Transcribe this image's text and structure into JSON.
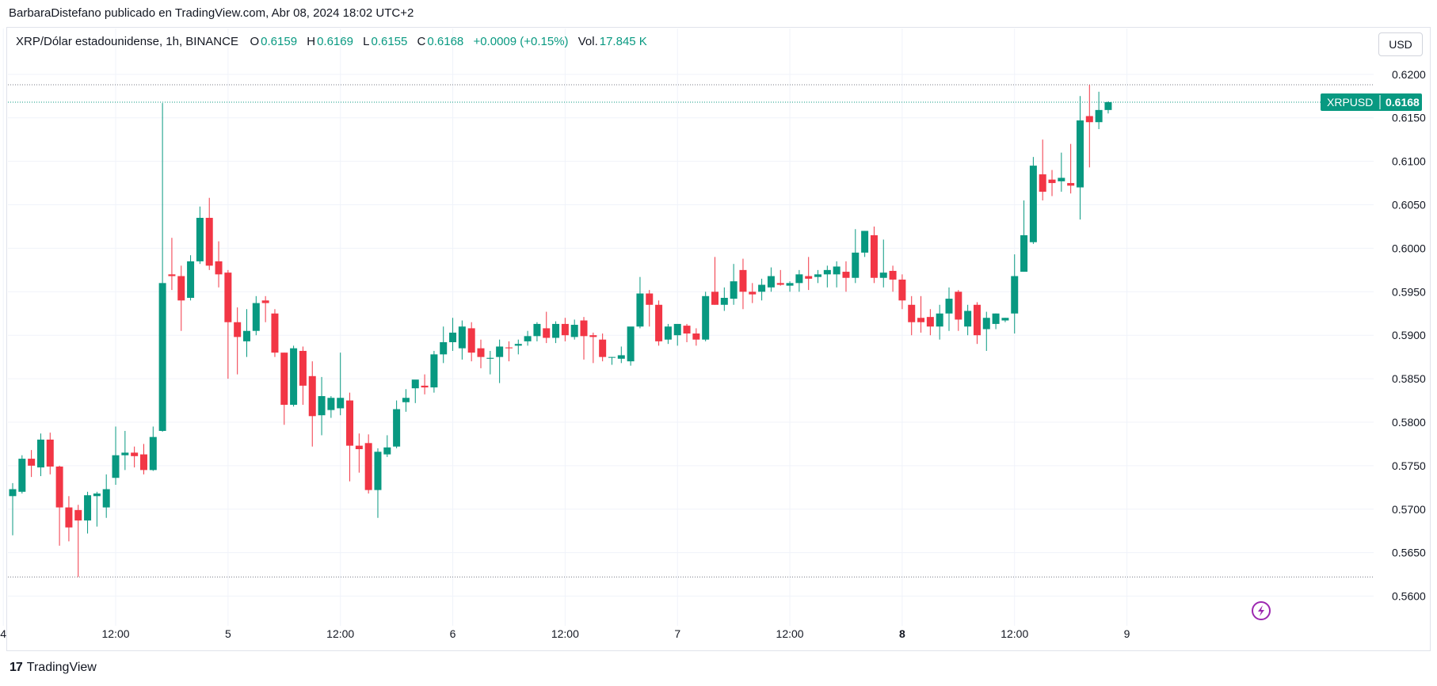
{
  "header": {
    "attribution": "BarbaraDistefano publicado en TradingView.com, Abr 08, 2024 18:02 UTC+2"
  },
  "legend": {
    "symbol": "XRP/Dólar estadounidense, 1h, BINANCE",
    "open_label": "O",
    "open": "0.6159",
    "high_label": "H",
    "high": "0.6169",
    "low_label": "L",
    "low": "0.6155",
    "close_label": "C",
    "close": "0.6168",
    "change": "+0.0009 (+0.15%)",
    "volume_label": "Vol.",
    "volume": "17.845 K"
  },
  "currency_button": "USD",
  "footer": {
    "brand": "TradingView",
    "logo_text": "17"
  },
  "colors": {
    "up": "#089981",
    "down": "#f23645",
    "grid": "#f0f3fa",
    "text": "#131722",
    "accent": "#9c27b0"
  },
  "icons": {
    "flash": "lightning-icon"
  },
  "chart_data": {
    "type": "candlestick",
    "symbol": "XRPUSD",
    "last_price": "0.6168",
    "ylim": [
      0.5575,
      0.6225
    ],
    "y_ticks": [
      "0.6200",
      "0.6150",
      "0.6100",
      "0.6050",
      "0.6000",
      "0.5950",
      "0.5900",
      "0.5850",
      "0.5800",
      "0.5750",
      "0.5700",
      "0.5650",
      "0.5600"
    ],
    "x_ticks": [
      {
        "label": "4",
        "index": -1,
        "bold": false
      },
      {
        "label": "12:00",
        "index": 11,
        "bold": false
      },
      {
        "label": "5",
        "index": 23,
        "bold": false
      },
      {
        "label": "12:00",
        "index": 35,
        "bold": false
      },
      {
        "label": "6",
        "index": 47,
        "bold": false
      },
      {
        "label": "12:00",
        "index": 59,
        "bold": false
      },
      {
        "label": "7",
        "index": 71,
        "bold": false
      },
      {
        "label": "12:00",
        "index": 83,
        "bold": false
      },
      {
        "label": "8",
        "index": 95,
        "bold": true
      },
      {
        "label": "12:00",
        "index": 107,
        "bold": false
      },
      {
        "label": "9",
        "index": 119,
        "bold": false
      }
    ],
    "reference_lines": [
      0.6188,
      0.6168,
      0.5622
    ],
    "candles": [
      {
        "o": 0.5715,
        "h": 0.573,
        "l": 0.567,
        "c": 0.5723
      },
      {
        "o": 0.572,
        "h": 0.5762,
        "l": 0.5718,
        "c": 0.5758
      },
      {
        "o": 0.5758,
        "h": 0.5768,
        "l": 0.5737,
        "c": 0.575
      },
      {
        "o": 0.5748,
        "h": 0.5787,
        "l": 0.5738,
        "c": 0.578
      },
      {
        "o": 0.578,
        "h": 0.5788,
        "l": 0.574,
        "c": 0.5749
      },
      {
        "o": 0.5749,
        "h": 0.575,
        "l": 0.5658,
        "c": 0.5702
      },
      {
        "o": 0.5702,
        "h": 0.5715,
        "l": 0.5663,
        "c": 0.5679
      },
      {
        "o": 0.5699,
        "h": 0.5705,
        "l": 0.5622,
        "c": 0.5687
      },
      {
        "o": 0.5687,
        "h": 0.572,
        "l": 0.5672,
        "c": 0.5716
      },
      {
        "o": 0.5715,
        "h": 0.572,
        "l": 0.568,
        "c": 0.5718
      },
      {
        "o": 0.5702,
        "h": 0.574,
        "l": 0.569,
        "c": 0.5723
      },
      {
        "o": 0.5736,
        "h": 0.5795,
        "l": 0.5728,
        "c": 0.5762
      },
      {
        "o": 0.5762,
        "h": 0.579,
        "l": 0.5745,
        "c": 0.5765
      },
      {
        "o": 0.5765,
        "h": 0.5772,
        "l": 0.5748,
        "c": 0.5761
      },
      {
        "o": 0.5763,
        "h": 0.5775,
        "l": 0.574,
        "c": 0.5745
      },
      {
        "o": 0.5745,
        "h": 0.5795,
        "l": 0.5744,
        "c": 0.5783
      },
      {
        "o": 0.579,
        "h": 0.6167,
        "l": 0.5789,
        "c": 0.596
      },
      {
        "o": 0.597,
        "h": 0.6012,
        "l": 0.5952,
        "c": 0.5968
      },
      {
        "o": 0.5968,
        "h": 0.598,
        "l": 0.5905,
        "c": 0.594
      },
      {
        "o": 0.5943,
        "h": 0.5992,
        "l": 0.594,
        "c": 0.5985
      },
      {
        "o": 0.5985,
        "h": 0.6048,
        "l": 0.5982,
        "c": 0.6035
      },
      {
        "o": 0.6035,
        "h": 0.6058,
        "l": 0.5975,
        "c": 0.598
      },
      {
        "o": 0.5985,
        "h": 0.6008,
        "l": 0.5955,
        "c": 0.597
      },
      {
        "o": 0.5972,
        "h": 0.5975,
        "l": 0.585,
        "c": 0.5915
      },
      {
        "o": 0.5915,
        "h": 0.5932,
        "l": 0.5855,
        "c": 0.5898
      },
      {
        "o": 0.5893,
        "h": 0.593,
        "l": 0.5875,
        "c": 0.5905
      },
      {
        "o": 0.5905,
        "h": 0.5945,
        "l": 0.59,
        "c": 0.5937
      },
      {
        "o": 0.594,
        "h": 0.5945,
        "l": 0.5915,
        "c": 0.5937
      },
      {
        "o": 0.5925,
        "h": 0.593,
        "l": 0.5875,
        "c": 0.588
      },
      {
        "o": 0.588,
        "h": 0.588,
        "l": 0.5797,
        "c": 0.582
      },
      {
        "o": 0.582,
        "h": 0.5888,
        "l": 0.5818,
        "c": 0.5885
      },
      {
        "o": 0.5882,
        "h": 0.5887,
        "l": 0.582,
        "c": 0.5842
      },
      {
        "o": 0.5853,
        "h": 0.587,
        "l": 0.5772,
        "c": 0.5807
      },
      {
        "o": 0.5808,
        "h": 0.5852,
        "l": 0.5785,
        "c": 0.583
      },
      {
        "o": 0.5814,
        "h": 0.583,
        "l": 0.5805,
        "c": 0.5828
      },
      {
        "o": 0.5816,
        "h": 0.588,
        "l": 0.5808,
        "c": 0.5828
      },
      {
        "o": 0.5825,
        "h": 0.5834,
        "l": 0.5732,
        "c": 0.5773
      },
      {
        "o": 0.5773,
        "h": 0.5787,
        "l": 0.5742,
        "c": 0.5769
      },
      {
        "o": 0.5776,
        "h": 0.5786,
        "l": 0.5718,
        "c": 0.5722
      },
      {
        "o": 0.5722,
        "h": 0.577,
        "l": 0.569,
        "c": 0.5766
      },
      {
        "o": 0.5763,
        "h": 0.5785,
        "l": 0.576,
        "c": 0.5771
      },
      {
        "o": 0.5772,
        "h": 0.5825,
        "l": 0.577,
        "c": 0.5815
      },
      {
        "o": 0.5823,
        "h": 0.5838,
        "l": 0.5812,
        "c": 0.5828
      },
      {
        "o": 0.5839,
        "h": 0.5846,
        "l": 0.5822,
        "c": 0.5849
      },
      {
        "o": 0.5842,
        "h": 0.5855,
        "l": 0.5832,
        "c": 0.584
      },
      {
        "o": 0.584,
        "h": 0.5882,
        "l": 0.5834,
        "c": 0.5878
      },
      {
        "o": 0.5878,
        "h": 0.591,
        "l": 0.5868,
        "c": 0.5892
      },
      {
        "o": 0.5892,
        "h": 0.592,
        "l": 0.5882,
        "c": 0.5903
      },
      {
        "o": 0.5885,
        "h": 0.5917,
        "l": 0.5872,
        "c": 0.591
      },
      {
        "o": 0.5908,
        "h": 0.5915,
        "l": 0.587,
        "c": 0.588
      },
      {
        "o": 0.5885,
        "h": 0.5895,
        "l": 0.5862,
        "c": 0.5875
      },
      {
        "o": 0.5873,
        "h": 0.5882,
        "l": 0.5855,
        "c": 0.5874
      },
      {
        "o": 0.5875,
        "h": 0.5895,
        "l": 0.5845,
        "c": 0.5887
      },
      {
        "o": 0.5886,
        "h": 0.5893,
        "l": 0.587,
        "c": 0.5885
      },
      {
        "o": 0.5888,
        "h": 0.5895,
        "l": 0.5878,
        "c": 0.589
      },
      {
        "o": 0.5893,
        "h": 0.5905,
        "l": 0.5888,
        "c": 0.5899
      },
      {
        "o": 0.5899,
        "h": 0.5915,
        "l": 0.5893,
        "c": 0.5913
      },
      {
        "o": 0.5908,
        "h": 0.5927,
        "l": 0.5891,
        "c": 0.5897
      },
      {
        "o": 0.5897,
        "h": 0.5916,
        "l": 0.5891,
        "c": 0.5913
      },
      {
        "o": 0.5913,
        "h": 0.592,
        "l": 0.5893,
        "c": 0.59
      },
      {
        "o": 0.5898,
        "h": 0.5918,
        "l": 0.5895,
        "c": 0.5912
      },
      {
        "o": 0.5917,
        "h": 0.5921,
        "l": 0.5872,
        "c": 0.5899
      },
      {
        "o": 0.59,
        "h": 0.5903,
        "l": 0.5868,
        "c": 0.5898
      },
      {
        "o": 0.5895,
        "h": 0.5902,
        "l": 0.587,
        "c": 0.5875
      },
      {
        "o": 0.5875,
        "h": 0.5875,
        "l": 0.5866,
        "c": 0.5875
      },
      {
        "o": 0.5873,
        "h": 0.5887,
        "l": 0.5868,
        "c": 0.5877
      },
      {
        "o": 0.587,
        "h": 0.5909,
        "l": 0.5865,
        "c": 0.591
      },
      {
        "o": 0.591,
        "h": 0.5967,
        "l": 0.5908,
        "c": 0.5948
      },
      {
        "o": 0.5948,
        "h": 0.5952,
        "l": 0.591,
        "c": 0.5935
      },
      {
        "o": 0.5935,
        "h": 0.594,
        "l": 0.5888,
        "c": 0.5893
      },
      {
        "o": 0.5895,
        "h": 0.5913,
        "l": 0.589,
        "c": 0.591
      },
      {
        "o": 0.59,
        "h": 0.5912,
        "l": 0.5888,
        "c": 0.5913
      },
      {
        "o": 0.5911,
        "h": 0.5913,
        "l": 0.5892,
        "c": 0.5902
      },
      {
        "o": 0.5902,
        "h": 0.5908,
        "l": 0.5888,
        "c": 0.5895
      },
      {
        "o": 0.5895,
        "h": 0.595,
        "l": 0.5893,
        "c": 0.5945
      },
      {
        "o": 0.595,
        "h": 0.599,
        "l": 0.5935,
        "c": 0.5935
      },
      {
        "o": 0.5935,
        "h": 0.5955,
        "l": 0.5928,
        "c": 0.5943
      },
      {
        "o": 0.5942,
        "h": 0.5982,
        "l": 0.5935,
        "c": 0.5962
      },
      {
        "o": 0.5975,
        "h": 0.5988,
        "l": 0.593,
        "c": 0.595
      },
      {
        "o": 0.595,
        "h": 0.596,
        "l": 0.5937,
        "c": 0.5947
      },
      {
        "o": 0.595,
        "h": 0.5965,
        "l": 0.594,
        "c": 0.5958
      },
      {
        "o": 0.5955,
        "h": 0.5978,
        "l": 0.595,
        "c": 0.5968
      },
      {
        "o": 0.596,
        "h": 0.5975,
        "l": 0.5957,
        "c": 0.5958
      },
      {
        "o": 0.5957,
        "h": 0.5962,
        "l": 0.595,
        "c": 0.596
      },
      {
        "o": 0.596,
        "h": 0.5975,
        "l": 0.595,
        "c": 0.597
      },
      {
        "o": 0.5968,
        "h": 0.599,
        "l": 0.5952,
        "c": 0.5965
      },
      {
        "o": 0.5967,
        "h": 0.5975,
        "l": 0.596,
        "c": 0.597
      },
      {
        "o": 0.597,
        "h": 0.598,
        "l": 0.5955,
        "c": 0.5975
      },
      {
        "o": 0.597,
        "h": 0.5985,
        "l": 0.5955,
        "c": 0.5979
      },
      {
        "o": 0.5973,
        "h": 0.5985,
        "l": 0.595,
        "c": 0.5966
      },
      {
        "o": 0.5966,
        "h": 0.6022,
        "l": 0.596,
        "c": 0.5995
      },
      {
        "o": 0.5995,
        "h": 0.602,
        "l": 0.599,
        "c": 0.602
      },
      {
        "o": 0.6015,
        "h": 0.6025,
        "l": 0.596,
        "c": 0.5966
      },
      {
        "o": 0.5966,
        "h": 0.601,
        "l": 0.5955,
        "c": 0.5972
      },
      {
        "o": 0.5974,
        "h": 0.598,
        "l": 0.595,
        "c": 0.5964
      },
      {
        "o": 0.5964,
        "h": 0.597,
        "l": 0.593,
        "c": 0.594
      },
      {
        "o": 0.5935,
        "h": 0.5945,
        "l": 0.59,
        "c": 0.5915
      },
      {
        "o": 0.592,
        "h": 0.5945,
        "l": 0.5903,
        "c": 0.5915
      },
      {
        "o": 0.5921,
        "h": 0.593,
        "l": 0.59,
        "c": 0.591
      },
      {
        "o": 0.591,
        "h": 0.5935,
        "l": 0.5895,
        "c": 0.5925
      },
      {
        "o": 0.5925,
        "h": 0.5955,
        "l": 0.5905,
        "c": 0.5942
      },
      {
        "o": 0.595,
        "h": 0.5952,
        "l": 0.5905,
        "c": 0.5918
      },
      {
        "o": 0.591,
        "h": 0.5935,
        "l": 0.59,
        "c": 0.5928
      },
      {
        "o": 0.5935,
        "h": 0.5938,
        "l": 0.589,
        "c": 0.59
      },
      {
        "o": 0.5907,
        "h": 0.5927,
        "l": 0.5882,
        "c": 0.592
      },
      {
        "o": 0.5913,
        "h": 0.5925,
        "l": 0.5907,
        "c": 0.5925
      },
      {
        "o": 0.5917,
        "h": 0.592,
        "l": 0.5915,
        "c": 0.592
      },
      {
        "o": 0.5925,
        "h": 0.5993,
        "l": 0.5902,
        "c": 0.5968
      },
      {
        "o": 0.5973,
        "h": 0.6055,
        "l": 0.5973,
        "c": 0.6015
      },
      {
        "o": 0.6007,
        "h": 0.6105,
        "l": 0.6005,
        "c": 0.6095
      },
      {
        "o": 0.6085,
        "h": 0.6125,
        "l": 0.6055,
        "c": 0.6065
      },
      {
        "o": 0.6079,
        "h": 0.609,
        "l": 0.606,
        "c": 0.6075
      },
      {
        "o": 0.6077,
        "h": 0.611,
        "l": 0.6065,
        "c": 0.6081
      },
      {
        "o": 0.6075,
        "h": 0.612,
        "l": 0.6063,
        "c": 0.6072
      },
      {
        "o": 0.607,
        "h": 0.6175,
        "l": 0.6033,
        "c": 0.6147
      },
      {
        "o": 0.6152,
        "h": 0.6188,
        "l": 0.6093,
        "c": 0.6145
      },
      {
        "o": 0.6145,
        "h": 0.618,
        "l": 0.6137,
        "c": 0.6159
      },
      {
        "o": 0.6159,
        "h": 0.6169,
        "l": 0.6155,
        "c": 0.6168
      }
    ]
  }
}
